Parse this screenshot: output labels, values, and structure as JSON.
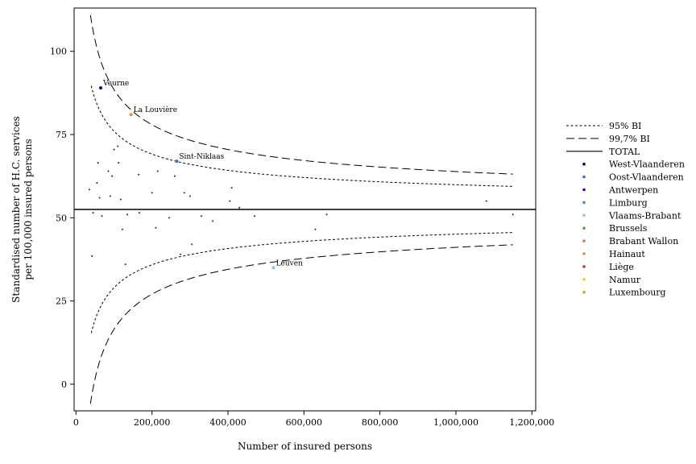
{
  "chart_data": {
    "type": "scatter",
    "subtype": "funnel-plot",
    "xlabel": "Number of insured persons",
    "ylabel_lines": [
      "Standardised number of H.C. services",
      "per 100,000 insured persons"
    ],
    "xlim": [
      -5000,
      1210000
    ],
    "ylim": [
      -8,
      113
    ],
    "x_ticks": [
      0,
      200000,
      400000,
      600000,
      800000,
      1000000,
      1200000
    ],
    "x_tick_labels": [
      "0",
      "200,000",
      "400,000",
      "600,000",
      "800,000",
      "1,000,000",
      "1,200,000"
    ],
    "y_ticks": [
      0,
      25,
      50,
      75,
      100
    ],
    "y_tick_labels": [
      "0",
      "25",
      "50",
      "75",
      "100"
    ],
    "grid": false,
    "legend_position": "right",
    "total": 52.5,
    "reference_lines": [
      {
        "name": "95% BI",
        "style": "dotted",
        "k": 235,
        "x_min": 40000,
        "x_max": 1150000
      },
      {
        "name": "99,7% BI",
        "style": "dashed",
        "k": 360,
        "x_min": 38000,
        "x_max": 1150000
      },
      {
        "name": "TOTAL",
        "style": "solid",
        "value": 52.5
      }
    ],
    "legend": [
      {
        "name": "95% BI",
        "style": "dotted"
      },
      {
        "name": "99,7% BI",
        "style": "dashed"
      },
      {
        "name": "TOTAL",
        "style": "solid"
      },
      {
        "name": "West-Vlaanderen",
        "color": "#0a0a6e"
      },
      {
        "name": "Oost-Vlaanderen",
        "color": "#2f6fd6"
      },
      {
        "name": "Antwerpen",
        "color": "#1111cc"
      },
      {
        "name": "Limburg",
        "color": "#2f8fe8"
      },
      {
        "name": "Vlaams-Brabant",
        "color": "#7ec8f0"
      },
      {
        "name": "Brussels",
        "color": "#3cb043"
      },
      {
        "name": "Brabant Wallon",
        "color": "#e07a3a"
      },
      {
        "name": "Hainaut",
        "color": "#f28c28"
      },
      {
        "name": "Liège",
        "color": "#c0392b"
      },
      {
        "name": "Namur",
        "color": "#f5d000"
      },
      {
        "name": "Luxembourg",
        "color": "#e0a020"
      }
    ],
    "labeled_points": [
      {
        "label": "Veurne",
        "x": 65000,
        "y": 89,
        "color": "#0a0a6e"
      },
      {
        "label": "La Louvière",
        "x": 145000,
        "y": 81,
        "color": "#f28c28"
      },
      {
        "label": "Sint-Niklaas",
        "x": 265000,
        "y": 67,
        "color": "#2f6fd6"
      },
      {
        "label": "Leuven",
        "x": 520000,
        "y": 35,
        "color": "#7ec8f0"
      }
    ],
    "points": [
      {
        "x": 35000,
        "y": 58.5
      },
      {
        "x": 42000,
        "y": 38.5
      },
      {
        "x": 45000,
        "y": 51.5
      },
      {
        "x": 55000,
        "y": 60.5
      },
      {
        "x": 58000,
        "y": 66.5
      },
      {
        "x": 62000,
        "y": 56
      },
      {
        "x": 68000,
        "y": 50.5
      },
      {
        "x": 85000,
        "y": 64
      },
      {
        "x": 90000,
        "y": 56.5
      },
      {
        "x": 95000,
        "y": 62.5
      },
      {
        "x": 100000,
        "y": 70.5
      },
      {
        "x": 110000,
        "y": 71.5
      },
      {
        "x": 112000,
        "y": 66.5
      },
      {
        "x": 118000,
        "y": 55.5
      },
      {
        "x": 122000,
        "y": 46.5
      },
      {
        "x": 130000,
        "y": 36
      },
      {
        "x": 135000,
        "y": 51
      },
      {
        "x": 165000,
        "y": 63
      },
      {
        "x": 167000,
        "y": 51.5
      },
      {
        "x": 200000,
        "y": 57.5
      },
      {
        "x": 210000,
        "y": 47
      },
      {
        "x": 215000,
        "y": 64
      },
      {
        "x": 245000,
        "y": 50
      },
      {
        "x": 260000,
        "y": 62.5
      },
      {
        "x": 275000,
        "y": 39
      },
      {
        "x": 285000,
        "y": 57.5
      },
      {
        "x": 300000,
        "y": 56.5
      },
      {
        "x": 305000,
        "y": 42
      },
      {
        "x": 330000,
        "y": 50.5
      },
      {
        "x": 360000,
        "y": 49
      },
      {
        "x": 405000,
        "y": 55
      },
      {
        "x": 410000,
        "y": 59
      },
      {
        "x": 430000,
        "y": 53
      },
      {
        "x": 470000,
        "y": 50.5
      },
      {
        "x": 630000,
        "y": 46.5
      },
      {
        "x": 660000,
        "y": 51
      },
      {
        "x": 1080000,
        "y": 55
      },
      {
        "x": 1150000,
        "y": 51
      }
    ]
  }
}
